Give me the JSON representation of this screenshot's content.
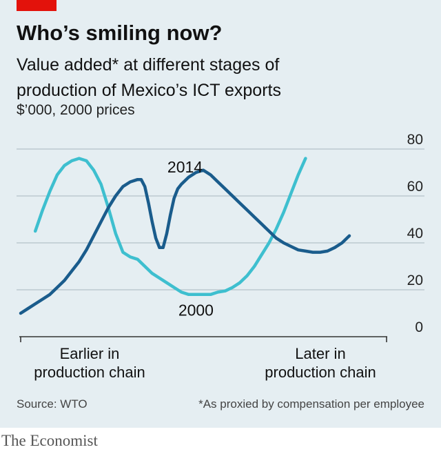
{
  "header": {
    "title": "Who’s smiling now?",
    "subtitle_line1": "Value added* at different stages of",
    "subtitle_line2": "production of Mexico’s ICT exports",
    "units": "$’000, 2000 prices"
  },
  "footer": {
    "source": "Source: WTO",
    "footnote": "*As proxied by compensation per employee"
  },
  "brand": "The Economist",
  "colors": {
    "background": "#e5eef2",
    "accent": "#e3120b",
    "series_2000": "#3ebfcf",
    "series_2014": "#1a5c8c",
    "grid": "#b3c1c9"
  },
  "chart_data": {
    "type": "line",
    "ylim": [
      0,
      80
    ],
    "y_ticks": [
      0,
      20,
      40,
      60,
      80
    ],
    "y_axis_side": "right",
    "x_label_left": [
      "Earlier in",
      "production chain"
    ],
    "x_label_right": [
      "Later in",
      "production chain"
    ],
    "x_domain": [
      0,
      100
    ],
    "series": [
      {
        "name": "2000",
        "color": "#3ebfcf",
        "points": [
          [
            4,
            45
          ],
          [
            6,
            54
          ],
          [
            8,
            62
          ],
          [
            10,
            69
          ],
          [
            12,
            73
          ],
          [
            14,
            75
          ],
          [
            16,
            76
          ],
          [
            18,
            75
          ],
          [
            20,
            71
          ],
          [
            22,
            65
          ],
          [
            24,
            55
          ],
          [
            26,
            44
          ],
          [
            28,
            36
          ],
          [
            30,
            34
          ],
          [
            32,
            33
          ],
          [
            34,
            30
          ],
          [
            36,
            27
          ],
          [
            38,
            25
          ],
          [
            40,
            23
          ],
          [
            42,
            21
          ],
          [
            44,
            19
          ],
          [
            46,
            18
          ],
          [
            48,
            18
          ],
          [
            50,
            18
          ],
          [
            52,
            18
          ],
          [
            54,
            19
          ],
          [
            56,
            19.5
          ],
          [
            58,
            21
          ],
          [
            60,
            23
          ],
          [
            62,
            26
          ],
          [
            64,
            30
          ],
          [
            66,
            35
          ],
          [
            68,
            40
          ],
          [
            70,
            46
          ],
          [
            72,
            53
          ],
          [
            74,
            61
          ],
          [
            76,
            69
          ],
          [
            78,
            76
          ]
        ]
      },
      {
        "name": "2014",
        "color": "#1a5c8c",
        "points": [
          [
            0,
            10
          ],
          [
            2,
            12
          ],
          [
            4,
            14
          ],
          [
            6,
            16
          ],
          [
            8,
            18
          ],
          [
            10,
            21
          ],
          [
            12,
            24
          ],
          [
            14,
            28
          ],
          [
            16,
            32
          ],
          [
            18,
            37
          ],
          [
            20,
            43
          ],
          [
            22,
            49
          ],
          [
            24,
            55
          ],
          [
            26,
            60
          ],
          [
            28,
            64
          ],
          [
            30,
            66
          ],
          [
            32,
            67
          ],
          [
            33,
            67
          ],
          [
            34,
            64
          ],
          [
            35,
            57
          ],
          [
            36,
            49
          ],
          [
            37,
            42
          ],
          [
            38,
            38
          ],
          [
            39,
            38
          ],
          [
            40,
            44
          ],
          [
            41,
            52
          ],
          [
            42,
            59
          ],
          [
            43,
            63
          ],
          [
            44,
            65
          ],
          [
            46,
            68
          ],
          [
            48,
            70
          ],
          [
            50,
            71
          ],
          [
            52,
            69
          ],
          [
            54,
            66
          ],
          [
            56,
            63
          ],
          [
            58,
            60
          ],
          [
            60,
            57
          ],
          [
            62,
            54
          ],
          [
            64,
            51
          ],
          [
            66,
            48
          ],
          [
            68,
            45
          ],
          [
            70,
            42
          ],
          [
            72,
            40
          ],
          [
            74,
            38.5
          ],
          [
            76,
            37
          ],
          [
            78,
            36.5
          ],
          [
            80,
            36
          ],
          [
            82,
            36
          ],
          [
            84,
            36.5
          ],
          [
            86,
            38
          ],
          [
            88,
            40
          ],
          [
            90,
            43
          ]
        ]
      }
    ],
    "annotations": [
      {
        "text": "2014",
        "x": 45,
        "y": 70
      },
      {
        "text": "2000",
        "x": 48,
        "y": 9
      }
    ]
  }
}
